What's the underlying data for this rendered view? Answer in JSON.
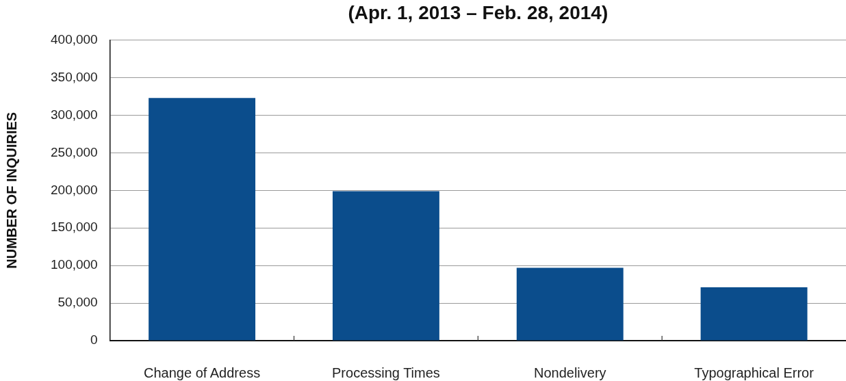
{
  "chart_data": {
    "type": "bar",
    "title": "(Apr. 1, 2013 – Feb. 28, 2014)",
    "ylabel": "NUMBER OF INQUIRIES",
    "categories": [
      "Change of Address",
      "Processing Times",
      "Nondelivery",
      "Typographical Error"
    ],
    "values": [
      323000,
      199000,
      97000,
      71000
    ],
    "color": "#0b4d8c",
    "ylim": [
      0,
      400000
    ],
    "yticks": [
      0,
      {
        "value": 50000,
        "label": "50,000"
      },
      {
        "value": 100000,
        "label": "100,000"
      },
      {
        "value": 150000,
        "label": "150,000"
      },
      {
        "value": 200000,
        "label": "200,000"
      },
      {
        "value": 250000,
        "label": "250,000"
      },
      {
        "value": 300000,
        "label": "300,000"
      },
      {
        "value": 350000,
        "label": "350,000"
      },
      {
        "value": 400000,
        "label": "400,000"
      }
    ],
    "grid": "y"
  }
}
